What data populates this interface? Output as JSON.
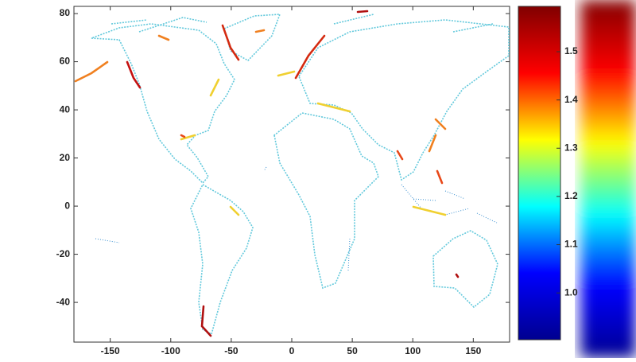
{
  "chart_data": {
    "type": "map",
    "xlim": [
      -180,
      180
    ],
    "xticks": [
      -150,
      -100,
      -50,
      0,
      50,
      100,
      150
    ],
    "ylim": [
      -56.5,
      83
    ],
    "yticks": [
      -40,
      -20,
      0,
      20,
      40,
      60,
      80
    ],
    "colorbar": {
      "clim": [
        0.903,
        1.594
      ],
      "colormap": "jet",
      "ticks": [
        {
          "value": 1,
          "label": "1.0"
        },
        {
          "value": 1.1,
          "label": "1.1"
        },
        {
          "value": 1.2,
          "label": "1.2"
        },
        {
          "value": 1.3,
          "label": "1.3"
        },
        {
          "value": 1.4,
          "label": "1.4"
        },
        {
          "value": 1.5,
          "label": "1.5"
        }
      ]
    }
  }
}
